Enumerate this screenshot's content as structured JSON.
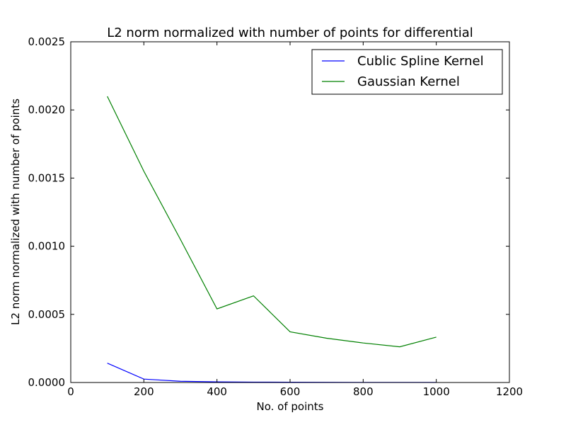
{
  "chart_data": {
    "type": "line",
    "title": "L2 norm normalized with number of points for differential",
    "xlabel": "No. of points",
    "ylabel": "L2 norm normalized with number of points",
    "xlim": [
      0,
      1200
    ],
    "ylim": [
      0,
      0.0025
    ],
    "x_ticks": [
      0,
      200,
      400,
      600,
      800,
      1000,
      1200
    ],
    "x_tick_labels": [
      "0",
      "200",
      "400",
      "600",
      "800",
      "1000",
      "1200"
    ],
    "y_ticks": [
      0,
      0.0005,
      0.001,
      0.0015,
      0.002,
      0.0025
    ],
    "y_tick_labels": [
      "0.0000",
      "0.0005",
      "0.0010",
      "0.0015",
      "0.0020",
      "0.0025"
    ],
    "grid": false,
    "legend_position": "top-right",
    "series": [
      {
        "name": "Cublic Spline Kernel",
        "color": "#0000ff",
        "x": [
          100,
          200,
          300,
          400,
          500,
          600,
          700,
          800,
          900,
          1000
        ],
        "y": [
          0.000142,
          2.5e-05,
          9e-06,
          5e-06,
          3e-06,
          2e-06,
          1.5e-06,
          1e-06,
          1e-06,
          1e-06
        ]
      },
      {
        "name": "Gaussian Kernel",
        "color": "#008000",
        "x": [
          100,
          200,
          300,
          400,
          500,
          600,
          700,
          800,
          900,
          1000
        ],
        "y": [
          0.0021,
          0.00155,
          0.00105,
          0.00054,
          0.000636,
          0.000372,
          0.000325,
          0.00029,
          0.000262,
          0.000333
        ]
      }
    ]
  }
}
